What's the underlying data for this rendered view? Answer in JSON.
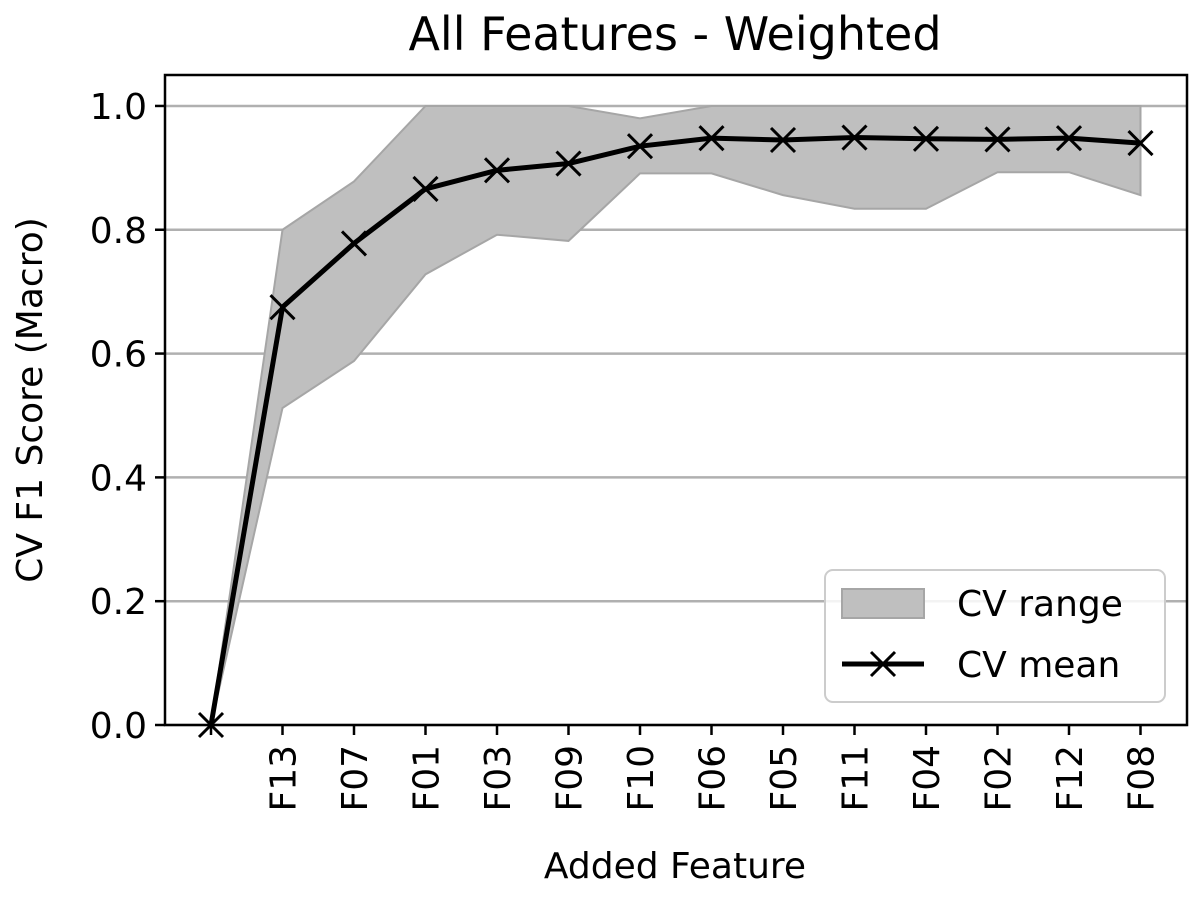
{
  "chart_data": {
    "type": "line",
    "title": "All Features - Weighted",
    "xlabel": "Added Feature",
    "ylabel": "CV F1 Score (Macro)",
    "categories": [
      "",
      "F13",
      "F07",
      "F01",
      "F03",
      "F09",
      "F10",
      "F06",
      "F05",
      "F11",
      "F04",
      "F02",
      "F12",
      "F08"
    ],
    "ylim": [
      0.0,
      1.05
    ],
    "yticks": [
      0.0,
      0.2,
      0.4,
      0.6,
      0.8,
      1.0
    ],
    "ytick_labels": [
      "0.0",
      "0.2",
      "0.4",
      "0.6",
      "0.8",
      "1.0"
    ],
    "grid": "horizontal",
    "legend_position": "bottom-right",
    "series": [
      {
        "name": "CV mean",
        "kind": "line-with-x-markers",
        "color": "#000000",
        "values": [
          0.0,
          0.675,
          0.778,
          0.866,
          0.896,
          0.907,
          0.935,
          0.948,
          0.945,
          0.949,
          0.947,
          0.946,
          0.948,
          0.94
        ]
      },
      {
        "name": "CV range",
        "kind": "band",
        "color": "#bfbfbf",
        "lower": [
          0.0,
          0.512,
          0.588,
          0.728,
          0.792,
          0.782,
          0.891,
          0.891,
          0.856,
          0.834,
          0.834,
          0.893,
          0.893,
          0.856
        ],
        "upper": [
          0.0,
          0.8,
          0.878,
          1.0,
          1.0,
          1.0,
          0.98,
          1.0,
          1.0,
          1.0,
          1.0,
          1.0,
          1.0,
          1.0
        ]
      }
    ]
  }
}
